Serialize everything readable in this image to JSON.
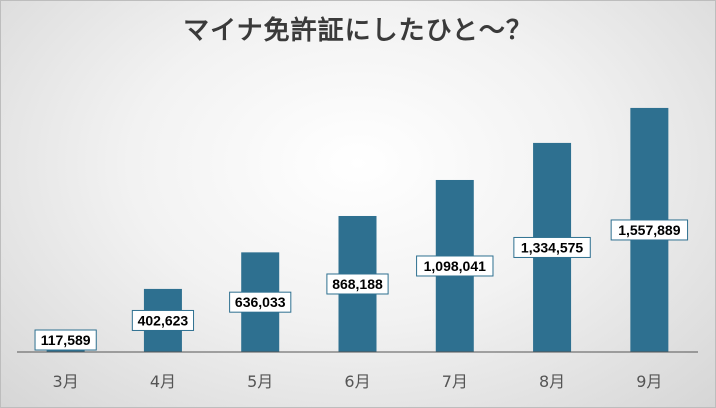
{
  "chart_data": {
    "type": "bar",
    "title": "マイナ免許証にしたひと〜？",
    "categories": [
      "3月",
      "4月",
      "5月",
      "6月",
      "7月",
      "8月",
      "9月"
    ],
    "values": [
      117589,
      402623,
      636033,
      868188,
      1098041,
      1334575,
      1557889
    ],
    "data_labels": [
      "117,589",
      "402,623",
      "636,033",
      "868,188",
      "1,098,041",
      "1,334,575",
      "1,557,889"
    ],
    "xlabel": "",
    "ylabel": "",
    "ylim": [
      0,
      1800000
    ],
    "grid": false,
    "legend": "none",
    "bar_color": "#2e7090"
  }
}
